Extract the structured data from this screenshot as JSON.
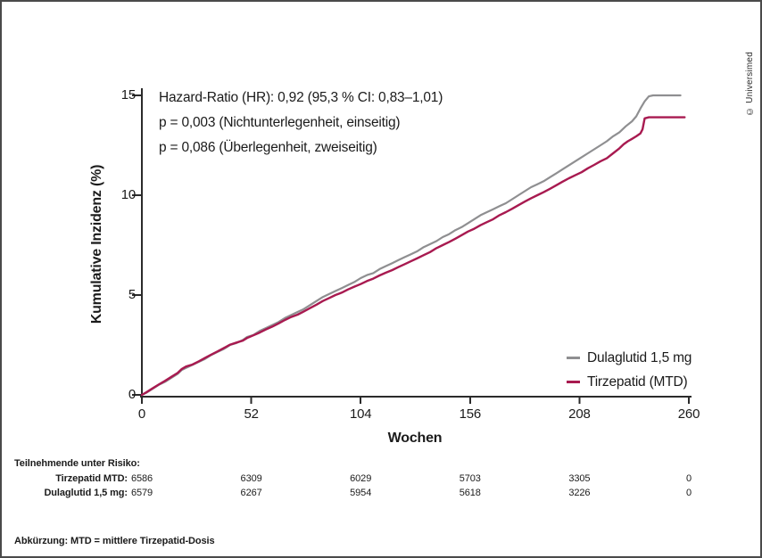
{
  "watermark": "© Universimed",
  "footnote": "Abkürzung: MTD = mittlere Tirzepatid-Dosis",
  "colors": {
    "axis": "#2b2b2b",
    "text": "#1b1b1b",
    "border": "#4a4a4a",
    "dulaglutid": "#8f8f91",
    "tirzepatid": "#a81a50"
  },
  "annotation": {
    "lines": [
      "Hazard-Ratio (HR): 0,92 (95,3 % CI: 0,83–1,01)",
      "p = 0,003 (Nichtunterlegenheit, einseitig)",
      "p = 0,086 (Überlegenheit, zweiseitig)"
    ]
  },
  "chart_data": {
    "type": "line",
    "title": "",
    "xlabel": "Wochen",
    "ylabel": "Kumulative Inzidenz (%)",
    "xlim": [
      0,
      260
    ],
    "ylim": [
      0,
      15
    ],
    "x_ticks": [
      0,
      52,
      104,
      156,
      208,
      260
    ],
    "y_ticks": [
      0,
      5,
      10,
      15
    ],
    "grid": false,
    "legend_position": "lower-right-inside",
    "series": [
      {
        "name": "Dulaglutid 1,5 mg",
        "color": "#8f8f91",
        "stroke_width": 2.2,
        "points": [
          [
            0,
            0
          ],
          [
            2,
            0.1
          ],
          [
            5,
            0.3
          ],
          [
            8,
            0.5
          ],
          [
            11,
            0.65
          ],
          [
            14,
            0.85
          ],
          [
            17,
            1.05
          ],
          [
            19,
            1.25
          ],
          [
            21,
            1.35
          ],
          [
            24,
            1.5
          ],
          [
            27,
            1.65
          ],
          [
            30,
            1.8
          ],
          [
            33,
            2.0
          ],
          [
            36,
            2.15
          ],
          [
            39,
            2.3
          ],
          [
            42,
            2.5
          ],
          [
            45,
            2.6
          ],
          [
            48,
            2.75
          ],
          [
            50,
            2.9
          ],
          [
            53,
            3.0
          ],
          [
            56,
            3.2
          ],
          [
            59,
            3.35
          ],
          [
            62,
            3.5
          ],
          [
            65,
            3.65
          ],
          [
            68,
            3.85
          ],
          [
            71,
            4.0
          ],
          [
            74,
            4.15
          ],
          [
            77,
            4.3
          ],
          [
            80,
            4.5
          ],
          [
            83,
            4.7
          ],
          [
            86,
            4.9
          ],
          [
            89,
            5.05
          ],
          [
            92,
            5.2
          ],
          [
            95,
            5.35
          ],
          [
            98,
            5.5
          ],
          [
            101,
            5.65
          ],
          [
            104,
            5.85
          ],
          [
            107,
            6.0
          ],
          [
            110,
            6.1
          ],
          [
            113,
            6.3
          ],
          [
            116,
            6.45
          ],
          [
            119,
            6.6
          ],
          [
            122,
            6.75
          ],
          [
            125,
            6.9
          ],
          [
            128,
            7.05
          ],
          [
            131,
            7.2
          ],
          [
            134,
            7.4
          ],
          [
            137,
            7.55
          ],
          [
            140,
            7.7
          ],
          [
            143,
            7.9
          ],
          [
            146,
            8.05
          ],
          [
            149,
            8.25
          ],
          [
            152,
            8.4
          ],
          [
            155,
            8.6
          ],
          [
            158,
            8.8
          ],
          [
            161,
            9.0
          ],
          [
            164,
            9.15
          ],
          [
            167,
            9.3
          ],
          [
            170,
            9.45
          ],
          [
            173,
            9.6
          ],
          [
            176,
            9.8
          ],
          [
            179,
            10.0
          ],
          [
            182,
            10.2
          ],
          [
            185,
            10.4
          ],
          [
            188,
            10.55
          ],
          [
            191,
            10.7
          ],
          [
            194,
            10.9
          ],
          [
            197,
            11.1
          ],
          [
            200,
            11.3
          ],
          [
            203,
            11.5
          ],
          [
            206,
            11.7
          ],
          [
            209,
            11.9
          ],
          [
            212,
            12.1
          ],
          [
            215,
            12.3
          ],
          [
            218,
            12.5
          ],
          [
            221,
            12.7
          ],
          [
            224,
            12.95
          ],
          [
            227,
            13.15
          ],
          [
            230,
            13.45
          ],
          [
            233,
            13.7
          ],
          [
            235,
            13.95
          ],
          [
            237,
            14.35
          ],
          [
            239,
            14.7
          ],
          [
            241,
            14.95
          ],
          [
            243,
            15.0
          ],
          [
            256,
            15.0
          ]
        ]
      },
      {
        "name": "Tirzepatid (MTD)",
        "color": "#a81a50",
        "stroke_width": 2.4,
        "points": [
          [
            0,
            0
          ],
          [
            2,
            0.12
          ],
          [
            5,
            0.32
          ],
          [
            8,
            0.52
          ],
          [
            11,
            0.7
          ],
          [
            14,
            0.9
          ],
          [
            17,
            1.1
          ],
          [
            19,
            1.3
          ],
          [
            21,
            1.42
          ],
          [
            24,
            1.52
          ],
          [
            27,
            1.68
          ],
          [
            30,
            1.85
          ],
          [
            33,
            2.02
          ],
          [
            36,
            2.18
          ],
          [
            39,
            2.35
          ],
          [
            42,
            2.52
          ],
          [
            45,
            2.62
          ],
          [
            48,
            2.72
          ],
          [
            50,
            2.85
          ],
          [
            53,
            2.98
          ],
          [
            56,
            3.12
          ],
          [
            59,
            3.28
          ],
          [
            62,
            3.42
          ],
          [
            65,
            3.58
          ],
          [
            68,
            3.75
          ],
          [
            71,
            3.9
          ],
          [
            74,
            4.02
          ],
          [
            77,
            4.18
          ],
          [
            80,
            4.35
          ],
          [
            83,
            4.52
          ],
          [
            86,
            4.7
          ],
          [
            89,
            4.85
          ],
          [
            92,
            5.0
          ],
          [
            95,
            5.12
          ],
          [
            98,
            5.28
          ],
          [
            101,
            5.42
          ],
          [
            104,
            5.55
          ],
          [
            107,
            5.7
          ],
          [
            110,
            5.82
          ],
          [
            113,
            5.98
          ],
          [
            116,
            6.12
          ],
          [
            119,
            6.25
          ],
          [
            122,
            6.4
          ],
          [
            125,
            6.55
          ],
          [
            128,
            6.7
          ],
          [
            131,
            6.85
          ],
          [
            134,
            7.0
          ],
          [
            137,
            7.15
          ],
          [
            140,
            7.35
          ],
          [
            143,
            7.5
          ],
          [
            146,
            7.65
          ],
          [
            149,
            7.82
          ],
          [
            152,
            8.0
          ],
          [
            155,
            8.18
          ],
          [
            158,
            8.32
          ],
          [
            161,
            8.5
          ],
          [
            164,
            8.65
          ],
          [
            167,
            8.8
          ],
          [
            170,
            9.0
          ],
          [
            173,
            9.15
          ],
          [
            176,
            9.32
          ],
          [
            179,
            9.5
          ],
          [
            182,
            9.68
          ],
          [
            185,
            9.85
          ],
          [
            188,
            10.0
          ],
          [
            191,
            10.15
          ],
          [
            194,
            10.32
          ],
          [
            197,
            10.5
          ],
          [
            200,
            10.68
          ],
          [
            203,
            10.85
          ],
          [
            206,
            11.0
          ],
          [
            209,
            11.15
          ],
          [
            212,
            11.35
          ],
          [
            215,
            11.52
          ],
          [
            218,
            11.7
          ],
          [
            221,
            11.85
          ],
          [
            224,
            12.1
          ],
          [
            227,
            12.35
          ],
          [
            229,
            12.55
          ],
          [
            231,
            12.7
          ],
          [
            233,
            12.82
          ],
          [
            235,
            12.95
          ],
          [
            237,
            13.1
          ],
          [
            238,
            13.3
          ],
          [
            239,
            13.85
          ],
          [
            241,
            13.9
          ],
          [
            258,
            13.9
          ]
        ]
      }
    ]
  },
  "risk_table": {
    "title": "Teilnehmende unter Risiko:",
    "rows": [
      {
        "label": "Tirzepatid MTD:",
        "values": [
          "6586",
          "6309",
          "6029",
          "5703",
          "3305",
          "0"
        ]
      },
      {
        "label": "Dulaglutid 1,5 mg:",
        "values": [
          "6579",
          "6267",
          "5954",
          "5618",
          "3226",
          "0"
        ]
      }
    ]
  }
}
